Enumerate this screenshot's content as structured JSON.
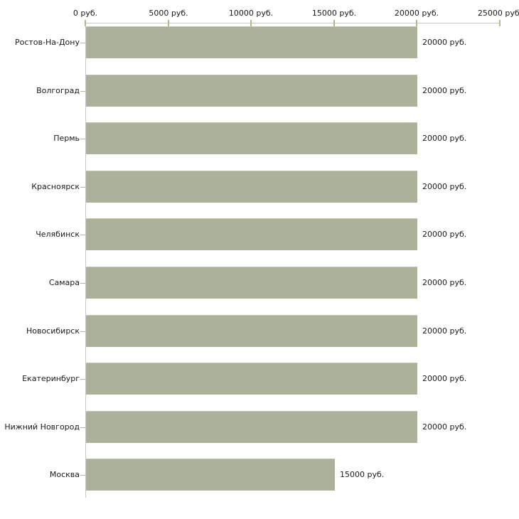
{
  "chart_data": {
    "type": "bar",
    "orientation": "horizontal",
    "title": "",
    "xlabel": "",
    "ylabel": "",
    "xlim": [
      0,
      25000
    ],
    "x_unit": "руб.",
    "grid": false,
    "legend": false,
    "categories": [
      "Ростов-На-Дону",
      "Волгоград",
      "Пермь",
      "Красноярск",
      "Челябинск",
      "Самара",
      "Новосибирск",
      "Екатеринбург",
      "Нижний Новгород",
      "Москва"
    ],
    "values": [
      20000,
      20000,
      20000,
      20000,
      20000,
      20000,
      20000,
      20000,
      20000,
      15000
    ],
    "value_labels": [
      "20000 руб.",
      "20000 руб.",
      "20000 руб.",
      "20000 руб.",
      "20000 руб.",
      "20000 руб.",
      "20000 руб.",
      "20000 руб.",
      "20000 руб.",
      "15000 руб."
    ],
    "x_tick_values": [
      0,
      5000,
      10000,
      15000,
      20000,
      25000
    ],
    "x_tick_labels": [
      "0 руб.",
      "5000 руб.",
      "10000 руб.",
      "15000 руб.",
      "20000 руб.",
      "25000 руб."
    ],
    "colors": {
      "bar_fill": "#acb29a",
      "bar_top_edge": "#c1c5b0",
      "axis_line": "#c9c9c9",
      "tick_mark": "#b6b78d",
      "text": "#1a1a1a",
      "background": "#ffffff"
    }
  }
}
